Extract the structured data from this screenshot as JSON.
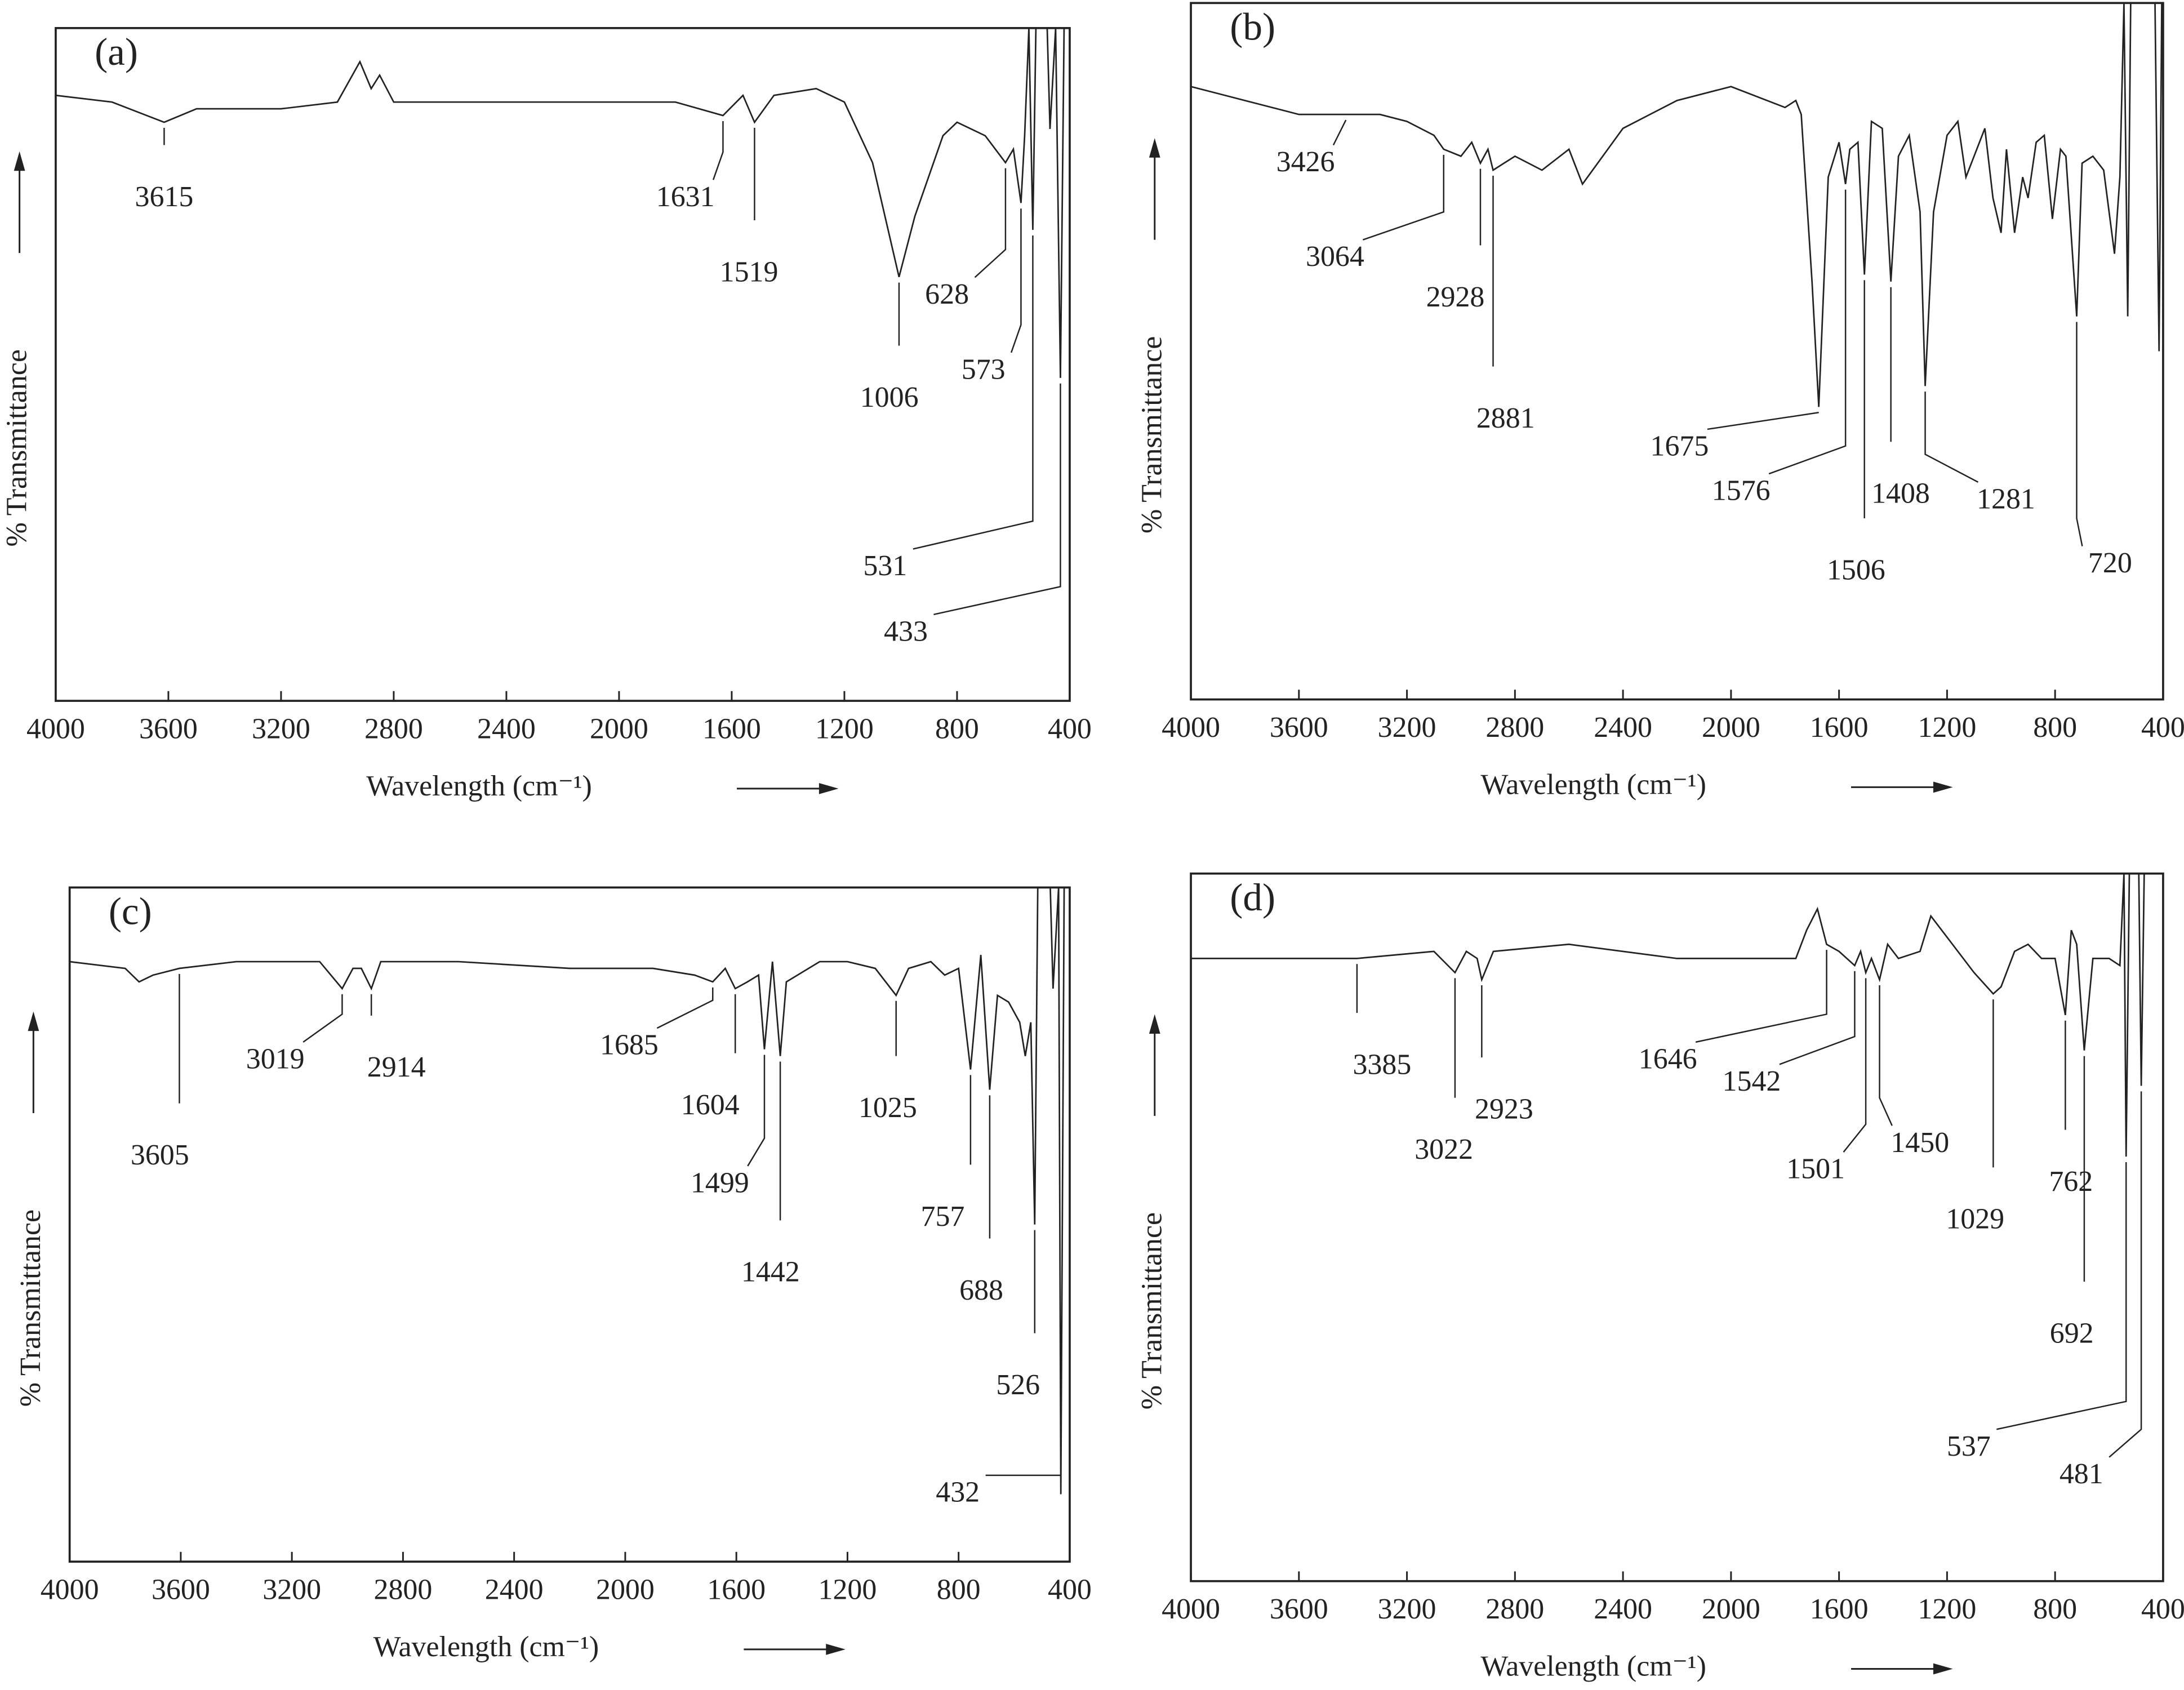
{
  "chart_data": [
    {
      "type": "line",
      "title": "(a)",
      "x_label": "Wavelength (cm⁻¹)",
      "y_label": "% Transmittance",
      "color": "#222222",
      "xlim": [
        4000,
        400
      ],
      "ylim": [
        0,
        100
      ],
      "xticks": [
        4000,
        3600,
        3200,
        2800,
        2400,
        2000,
        1600,
        1200,
        800,
        400
      ],
      "x": [
        4000,
        3800,
        3615,
        3500,
        3200,
        3000,
        2920,
        2880,
        2850,
        2800,
        2400,
        2000,
        1800,
        1631,
        1560,
        1519,
        1450,
        1300,
        1200,
        1100,
        1006,
        950,
        850,
        800,
        700,
        628,
        600,
        573,
        560,
        545,
        531,
        520,
        480,
        470,
        450,
        433,
        420,
        400
      ],
      "values": [
        90,
        89,
        86,
        88,
        88,
        89,
        95,
        91,
        93,
        89,
        89,
        89,
        89,
        87,
        90,
        86,
        90,
        91,
        89,
        80,
        63,
        72,
        84,
        86,
        84,
        80,
        82,
        74,
        84,
        100,
        70,
        100,
        100,
        85,
        100,
        48,
        100,
        100
      ],
      "peaks": [
        3615,
        1631,
        1519,
        1006,
        628,
        573,
        531,
        433
      ]
    },
    {
      "type": "line",
      "title": "(b)",
      "x_label": "Wavelength (cm⁻¹)",
      "y_label": "% Transmittance",
      "color": "#222222",
      "xlim": [
        4000,
        400
      ],
      "ylim": [
        0,
        100
      ],
      "xticks": [
        4000,
        3600,
        3200,
        2800,
        2400,
        2000,
        1600,
        1200,
        800,
        400
      ],
      "x": [
        4000,
        3800,
        3600,
        3426,
        3300,
        3200,
        3100,
        3064,
        3000,
        2960,
        2928,
        2900,
        2881,
        2800,
        2700,
        2600,
        2550,
        2400,
        2200,
        2000,
        1800,
        1760,
        1740,
        1700,
        1675,
        1640,
        1600,
        1576,
        1560,
        1530,
        1506,
        1480,
        1440,
        1408,
        1380,
        1340,
        1300,
        1281,
        1250,
        1200,
        1160,
        1130,
        1100,
        1060,
        1030,
        1000,
        980,
        950,
        920,
        900,
        870,
        840,
        810,
        780,
        760,
        720,
        700,
        660,
        620,
        580,
        560,
        545,
        531,
        520,
        430,
        415,
        405,
        400
      ],
      "values": [
        88,
        86,
        84,
        84,
        84,
        83,
        81,
        79,
        78,
        80,
        77,
        79,
        76,
        78,
        76,
        79,
        74,
        82,
        86,
        88,
        85,
        86,
        84,
        60,
        42,
        75,
        80,
        74,
        79,
        80,
        61,
        83,
        82,
        60,
        78,
        81,
        70,
        45,
        70,
        81,
        83,
        75,
        78,
        82,
        72,
        67,
        79,
        67,
        75,
        72,
        80,
        81,
        69,
        79,
        78,
        55,
        77,
        78,
        76,
        64,
        75,
        100,
        55,
        100,
        100,
        50,
        100,
        100
      ],
      "peaks": [
        3426,
        3064,
        2928,
        2881,
        1675,
        1576,
        1506,
        1408,
        1281,
        720
      ]
    },
    {
      "type": "line",
      "title": "(c)",
      "x_label": "Wavelength (cm⁻¹)",
      "y_label": "% Transmittance",
      "color": "#222222",
      "xlim": [
        4000,
        400
      ],
      "ylim": [
        0,
        100
      ],
      "xticks": [
        4000,
        3600,
        3200,
        2800,
        2400,
        2000,
        1600,
        1200,
        800,
        400
      ],
      "x": [
        4000,
        3800,
        3750,
        3700,
        3605,
        3400,
        3100,
        3019,
        2980,
        2950,
        2914,
        2880,
        2600,
        2200,
        1900,
        1750,
        1685,
        1640,
        1604,
        1560,
        1520,
        1499,
        1470,
        1442,
        1420,
        1300,
        1200,
        1100,
        1025,
        980,
        900,
        850,
        800,
        757,
        720,
        688,
        660,
        620,
        580,
        560,
        540,
        526,
        515,
        470,
        460,
        440,
        432,
        420,
        400
      ],
      "values": [
        89,
        88,
        86,
        87,
        88,
        89,
        89,
        85,
        88,
        88,
        85,
        89,
        89,
        88,
        88,
        87,
        86,
        88,
        85,
        86,
        87,
        76,
        89,
        75,
        86,
        89,
        89,
        88,
        84,
        88,
        89,
        87,
        88,
        73,
        90,
        70,
        84,
        83,
        80,
        75,
        80,
        50,
        100,
        100,
        85,
        100,
        10,
        100,
        100
      ],
      "peaks": [
        3605,
        3019,
        2914,
        1685,
        1604,
        1499,
        1442,
        1025,
        757,
        688,
        526,
        432
      ]
    },
    {
      "type": "line",
      "title": "(d)",
      "x_label": "Wavelength (cm⁻¹)",
      "y_label": "% Transmittance",
      "color": "#222222",
      "xlim": [
        4000,
        400
      ],
      "ylim": [
        0,
        100
      ],
      "xticks": [
        4000,
        3600,
        3200,
        2800,
        2400,
        2000,
        1600,
        1200,
        800,
        400
      ],
      "x": [
        4000,
        3600,
        3385,
        3100,
        3022,
        2980,
        2940,
        2923,
        2880,
        2600,
        2200,
        2000,
        1760,
        1720,
        1680,
        1646,
        1600,
        1542,
        1520,
        1501,
        1480,
        1450,
        1420,
        1380,
        1300,
        1260,
        1200,
        1100,
        1029,
        1000,
        950,
        900,
        850,
        800,
        762,
        740,
        720,
        692,
        660,
        600,
        560,
        545,
        537,
        525,
        490,
        481,
        470,
        400
      ],
      "values": [
        88,
        88,
        88,
        89,
        86,
        89,
        88,
        85,
        89,
        90,
        88,
        88,
        88,
        92,
        95,
        90,
        89,
        87,
        89,
        86,
        88,
        85,
        90,
        88,
        89,
        94,
        91,
        86,
        83,
        84,
        89,
        90,
        88,
        88,
        80,
        92,
        90,
        75,
        88,
        88,
        87,
        100,
        60,
        100,
        100,
        70,
        100,
        100
      ],
      "peaks": [
        3385,
        3022,
        2923,
        1646,
        1542,
        1501,
        1450,
        1029,
        762,
        692,
        537,
        481
      ]
    }
  ]
}
